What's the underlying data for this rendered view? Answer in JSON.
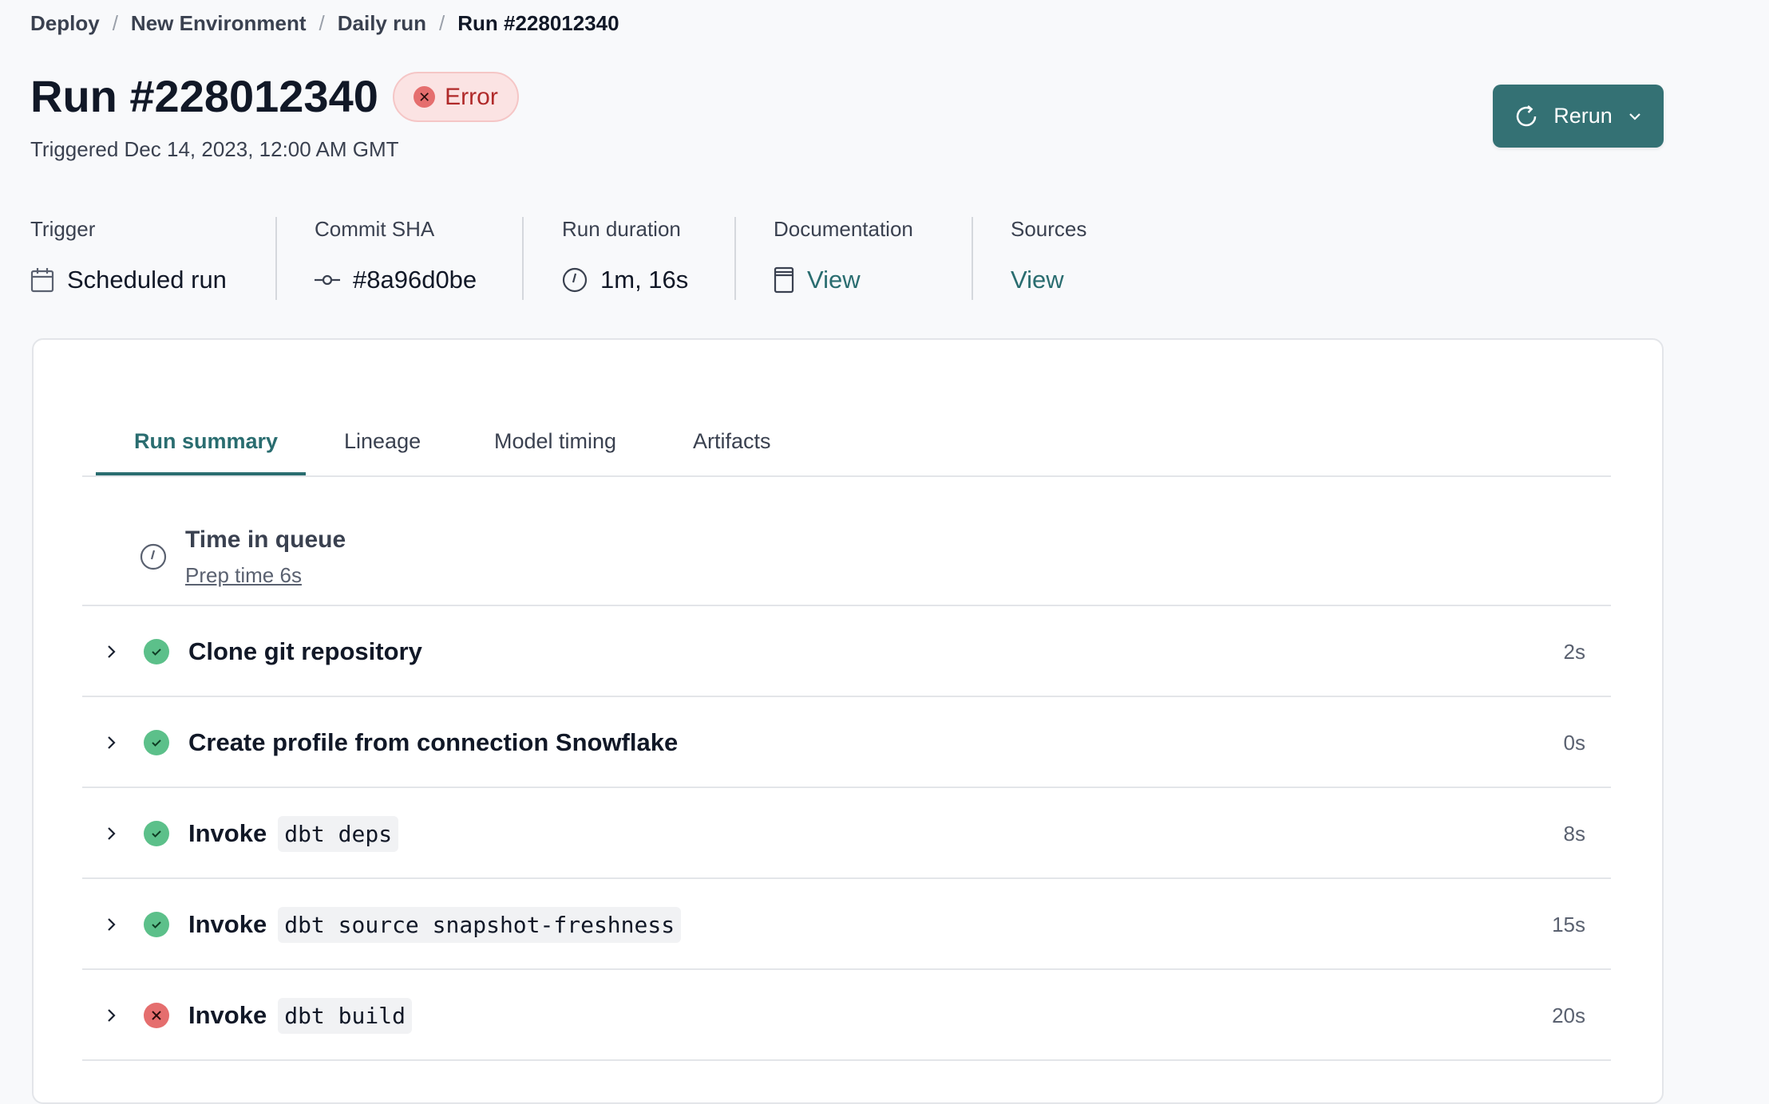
{
  "breadcrumb": [
    "Deploy",
    "New Environment",
    "Daily run",
    "Run #228012340"
  ],
  "header": {
    "title": "Run #228012340",
    "status": "Error",
    "triggered": "Triggered Dec 14, 2023, 12:00 AM GMT",
    "rerun_label": "Rerun"
  },
  "meta": [
    {
      "label": "Trigger",
      "value": "Scheduled run",
      "icon": "calendar-icon"
    },
    {
      "label": "Commit SHA",
      "value": "#8a96d0be",
      "icon": "commit-icon"
    },
    {
      "label": "Run duration",
      "value": "1m, 16s",
      "icon": "clock-icon"
    },
    {
      "label": "Documentation",
      "value": "View",
      "icon": "document-icon"
    },
    {
      "label": "Sources",
      "value": "View"
    }
  ],
  "tabs": [
    "Run summary",
    "Lineage",
    "Model timing",
    "Artifacts"
  ],
  "active_tab": "Run summary",
  "queue": {
    "title": "Time in queue",
    "prep": "Prep time 6s"
  },
  "steps": [
    {
      "label": "Clone git repository",
      "code": "",
      "status": "success",
      "duration": "2s"
    },
    {
      "label": "Create profile from connection Snowflake",
      "code": "",
      "status": "success",
      "duration": "0s"
    },
    {
      "label": "Invoke",
      "code": "dbt deps",
      "status": "success",
      "duration": "8s"
    },
    {
      "label": "Invoke",
      "code": "dbt source snapshot-freshness",
      "status": "success",
      "duration": "15s"
    },
    {
      "label": "Invoke",
      "code": "dbt build",
      "status": "error",
      "duration": "20s"
    }
  ],
  "colors": {
    "accent": "#347174",
    "error": "#e56e6e",
    "success": "#5cc08a"
  }
}
